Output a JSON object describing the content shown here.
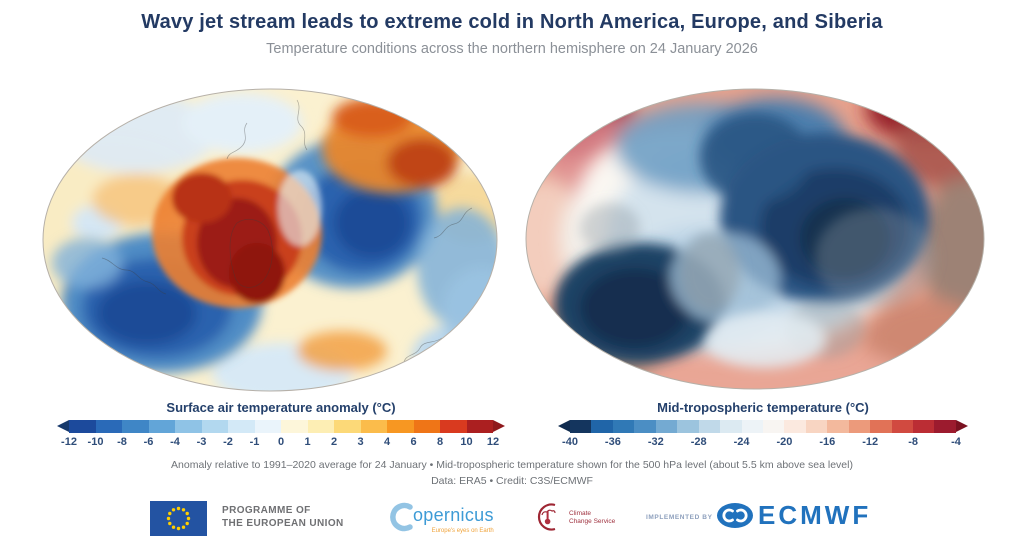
{
  "header": {
    "title": "Wavy jet stream leads to extreme cold in North America, Europe, and Siberia",
    "subtitle": "Temperature conditions across the northern hemisphere on 24 January 2026"
  },
  "panels": {
    "left": {
      "name": "Surface air temperature anomaly map, northern hemisphere"
    },
    "right": {
      "name": "Mid-tropospheric temperature map, northern hemisphere"
    }
  },
  "legends": {
    "left": {
      "label": "Surface air temperature anomaly (°C)",
      "ticks": [
        "-12",
        "-10",
        "-8",
        "-6",
        "-4",
        "-3",
        "-2",
        "-1",
        "0",
        "1",
        "2",
        "3",
        "4",
        "6",
        "8",
        "10",
        "12"
      ],
      "segment_colors": [
        "#1c4a9c",
        "#2a6ab8",
        "#3f86c6",
        "#62a5d8",
        "#8fc3e6",
        "#b2d8ef",
        "#d3e9f7",
        "#eaf4fb",
        "#fdf6da",
        "#fdeeb4",
        "#fcd978",
        "#fbbc4b",
        "#f79722",
        "#ef7517",
        "#d93a1f",
        "#ab1f20"
      ],
      "arrow_left_color": "#17396b",
      "arrow_right_color": "#8f191c"
    },
    "right": {
      "label": "Mid-tropospheric temperature (°C)",
      "ticks": [
        "-40",
        "-36",
        "-32",
        "-28",
        "-24",
        "-20",
        "-16",
        "-12",
        "-8",
        "-4"
      ],
      "segment_colors": [
        "#14355e",
        "#2065a8",
        "#3079b6",
        "#4b8ec4",
        "#74aad2",
        "#9cc4de",
        "#c0d9e9",
        "#dceaf2",
        "#edf3f7",
        "#f8f5f2",
        "#fbe9df",
        "#f8d5c2",
        "#f3b99d",
        "#ec9a7b",
        "#e17257",
        "#d14a40",
        "#bb2d34",
        "#9c1b2e"
      ],
      "arrow_left_color": "#0f2b4e",
      "arrow_right_color": "#7a1120"
    }
  },
  "footer": {
    "caption_line1": "Anomaly relative to 1991–2020 average for 24 January • Mid-tropospheric temperature shown for the 500 hPa level (about 5.5 km above sea level)",
    "caption_line2": "Data: ERA5 • Credit: C3S/ECMWF",
    "logos": {
      "eu_programme": {
        "line1": "PROGRAMME OF",
        "line2": "THE EUROPEAN UNION"
      },
      "copernicus": {
        "wordmark": "opernicus",
        "tagline": "Europe's eyes on Earth"
      },
      "climate_change_service": {
        "line1": "Climate",
        "line2": "Change Service"
      },
      "implemented_by": "IMPLEMENTED BY",
      "ecmwf": "ECMWF"
    }
  },
  "colors": {
    "title_navy": "#233a63",
    "subtitle_gray": "#8b9097",
    "tick_navy": "#2f4d79",
    "caption_gray": "#6e7277",
    "ecmwf_blue": "#2172bd",
    "copernicus_blue": "#3d9bd6",
    "c3s_maroon": "#9e2633",
    "eu_flag_blue": "#2353a2",
    "eu_star_yellow": "#ffcf00"
  },
  "chart_data": [
    {
      "type": "heatmap",
      "title": "Surface air temperature anomaly (°C)",
      "projection": "northern hemisphere, elliptical polar view",
      "scale_range": [
        -12,
        12
      ],
      "scale_ticks": [
        -12,
        -10,
        -8,
        -6,
        -4,
        -3,
        -2,
        -1,
        0,
        1,
        2,
        3,
        4,
        6,
        8,
        10,
        12
      ],
      "notable_features": [
        "deep cold anomalies (below -10°C) over central North America and central/eastern Siberia",
        "strong warm anomalies (above +10°C) over Greenland, the Canadian Arctic and parts of northeastern Siberia",
        "near-normal to mildly warm conditions over the Pacific and Atlantic edges"
      ]
    },
    {
      "type": "heatmap",
      "title": "Mid-tropospheric temperature (°C)",
      "level": "500 hPa (about 5.5 km above sea level)",
      "scale_range": [
        -40,
        -4
      ],
      "scale_ticks": [
        -40,
        -36,
        -32,
        -28,
        -24,
        -20,
        -16,
        -12,
        -8,
        -4
      ],
      "notable_features": [
        "two very cold lobes (below -36°C) over North America and over Siberia/Arctic Europe",
        "milder air (-12 to -4°C) forming a ring around the southern edge of the hemisphere",
        "warmest edges at the top corners of the projection"
      ]
    }
  ]
}
